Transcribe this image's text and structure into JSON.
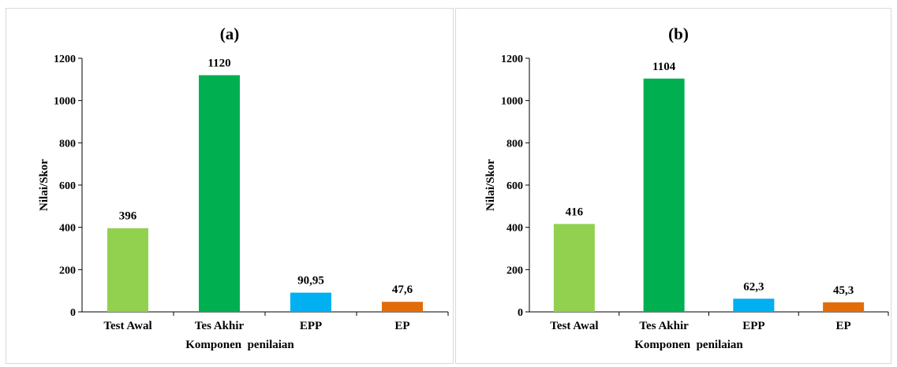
{
  "chart_data": [
    {
      "type": "bar",
      "title": "(a)",
      "xlabel": "Komponen  penilaian",
      "ylabel": "Nilai/Skor",
      "categories": [
        "Test Awal",
        "Tes Akhir",
        "EPP",
        "EP"
      ],
      "values": [
        396,
        1120,
        90.95,
        47.6
      ],
      "data_labels": [
        "396",
        "1120",
        "90,95",
        "47,6"
      ],
      "colors": [
        "#92d050",
        "#00b050",
        "#00b0f0",
        "#e36c0a"
      ],
      "ylim": [
        0,
        1200
      ],
      "yticks": [
        0,
        200,
        400,
        600,
        800,
        1000,
        1200
      ],
      "grid": false,
      "legend": "none"
    },
    {
      "type": "bar",
      "title": "(b)",
      "xlabel": "Komponen  penilaian",
      "ylabel": "Nilai/Skor",
      "categories": [
        "Test Awal",
        "Tes Akhir",
        "EPP",
        "EP"
      ],
      "values": [
        416,
        1104,
        62.3,
        45.3
      ],
      "data_labels": [
        "416",
        "1104",
        "62,3",
        "45,3"
      ],
      "colors": [
        "#92d050",
        "#00b050",
        "#00b0f0",
        "#e36c0a"
      ],
      "ylim": [
        0,
        1200
      ],
      "yticks": [
        0,
        200,
        400,
        600,
        800,
        1000,
        1200
      ],
      "grid": false,
      "legend": "none"
    }
  ]
}
